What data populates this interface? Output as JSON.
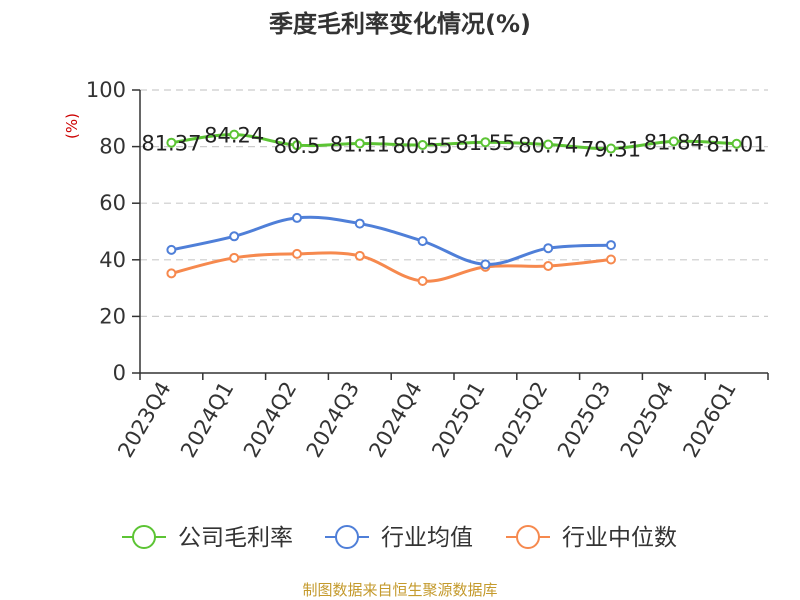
{
  "chart_data": {
    "type": "line",
    "title": "季度毛利率变化情况(%)",
    "ylabel": "(%)",
    "xlabel": "",
    "ylim": [
      0,
      100
    ],
    "yticks": [
      0,
      20,
      40,
      60,
      80,
      100
    ],
    "grid": true,
    "legend_position": "bottom",
    "categories": [
      "2023Q4",
      "2024Q1",
      "2024Q2",
      "2024Q3",
      "2024Q4",
      "2025Q1",
      "2025Q2",
      "2025Q3",
      "2025Q4",
      "2026Q1"
    ],
    "series": [
      {
        "name": "公司毛利率",
        "color": "#5cc434",
        "values": [
          81.37,
          84.24,
          80.5,
          81.11,
          80.55,
          81.55,
          80.74,
          79.31,
          81.84,
          81.01
        ],
        "labels": [
          "81.37",
          "84.24",
          "80.5",
          "81.11",
          "80.55",
          "81.55",
          "80.74",
          "79.31",
          "81.84",
          "81.01"
        ]
      },
      {
        "name": "行业均值",
        "color": "#4f7fd8",
        "values": [
          43.5,
          48.3,
          54.8,
          52.8,
          46.6,
          38.4,
          44.1,
          45.2,
          null,
          null
        ]
      },
      {
        "name": "行业中位数",
        "color": "#f6894e",
        "values": [
          35.2,
          40.7,
          42.1,
          41.4,
          32.5,
          37.5,
          37.8,
          40.1,
          null,
          null
        ]
      }
    ]
  },
  "source_text": "制图数据来自恒生聚源数据库"
}
